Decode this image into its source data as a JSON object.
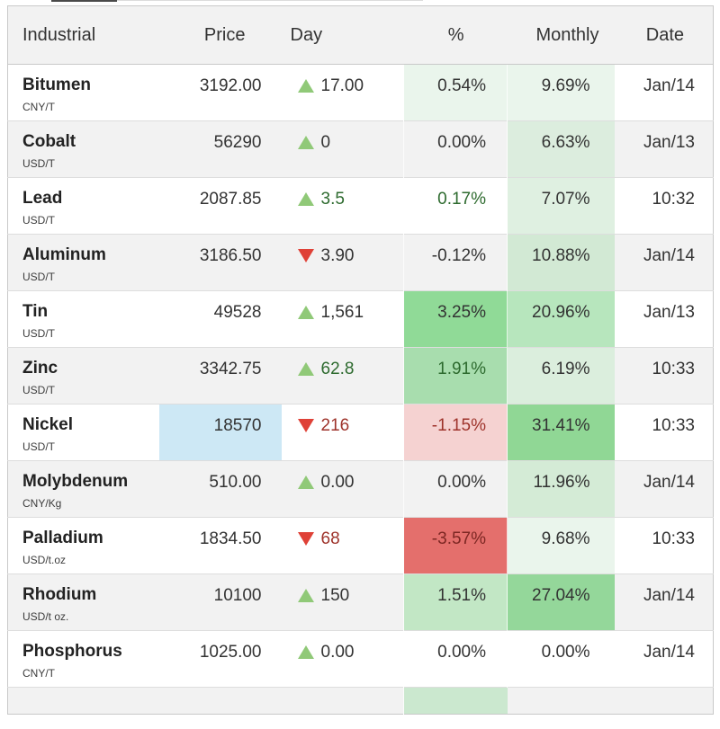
{
  "colors": {
    "triangle-green": "#90c978",
    "triangle-red": "#df4137",
    "text-dark": "#333333",
    "text-green": "#2d6a2e",
    "text-darkred": "#9e332b",
    "text-maroon": "#7c2723",
    "price-flash-blue": "#cde8f5",
    "header-bg": "#f2f2f2",
    "stripe-bg": "#f2f2f2"
  },
  "table": {
    "columns": [
      {
        "label": "Industrial"
      },
      {
        "label": "Price"
      },
      {
        "label": "Day"
      },
      {
        "label": "%"
      },
      {
        "label": "Monthly"
      },
      {
        "label": "Date"
      }
    ],
    "rows": [
      {
        "name": "Bitumen",
        "unit": "CNY/T",
        "price": "3192.00",
        "price_bg": null,
        "day": {
          "dir": "up",
          "value": "17.00",
          "color": "dark"
        },
        "pct": {
          "value": "0.54%",
          "bg": "#eaf5ec",
          "color": "dark"
        },
        "monthly": {
          "value": "9.69%",
          "bg": "#eaf5ec",
          "color": "dark"
        },
        "date": "Jan/14"
      },
      {
        "name": "Cobalt",
        "unit": "USD/T",
        "price": "56290",
        "price_bg": null,
        "day": {
          "dir": "up",
          "value": "0",
          "color": "dark"
        },
        "pct": {
          "value": "0.00%",
          "bg": null,
          "color": "dark"
        },
        "monthly": {
          "value": "6.63%",
          "bg": "#dcedde",
          "color": "dark"
        },
        "date": "Jan/13"
      },
      {
        "name": "Lead",
        "unit": "USD/T",
        "price": "2087.85",
        "price_bg": null,
        "day": {
          "dir": "up",
          "value": "3.5",
          "color": "green"
        },
        "pct": {
          "value": "0.17%",
          "bg": null,
          "color": "green"
        },
        "monthly": {
          "value": "7.07%",
          "bg": "#dff0e1",
          "color": "dark"
        },
        "date": "10:32"
      },
      {
        "name": "Aluminum",
        "unit": "USD/T",
        "price": "3186.50",
        "price_bg": null,
        "day": {
          "dir": "down",
          "value": "3.90",
          "color": "dark"
        },
        "pct": {
          "value": "-0.12%",
          "bg": null,
          "color": "dark"
        },
        "monthly": {
          "value": "10.88%",
          "bg": "#d2e9d4",
          "color": "dark"
        },
        "date": "Jan/14"
      },
      {
        "name": "Tin",
        "unit": "USD/T",
        "price": "49528",
        "price_bg": null,
        "day": {
          "dir": "up",
          "value": "1,561",
          "color": "dark"
        },
        "pct": {
          "value": "3.25%",
          "bg": "#90da97",
          "color": "dark"
        },
        "monthly": {
          "value": "20.96%",
          "bg": "#b7e6bd",
          "color": "dark"
        },
        "date": "Jan/13"
      },
      {
        "name": "Zinc",
        "unit": "USD/T",
        "price": "3342.75",
        "price_bg": null,
        "day": {
          "dir": "up",
          "value": "62.8",
          "color": "green"
        },
        "pct": {
          "value": "1.91%",
          "bg": "#a8ddae",
          "color": "green"
        },
        "monthly": {
          "value": "6.19%",
          "bg": "#dbeedd",
          "color": "dark"
        },
        "date": "10:33"
      },
      {
        "name": "Nickel",
        "unit": "USD/T",
        "price": "18570",
        "price_bg": "#cde8f5",
        "day": {
          "dir": "down",
          "value": "216",
          "color": "darkred"
        },
        "pct": {
          "value": "-1.15%",
          "bg": "#f5d2d1",
          "color": "darkred"
        },
        "monthly": {
          "value": "31.41%",
          "bg": "#90d795",
          "color": "dark"
        },
        "date": "10:33"
      },
      {
        "name": "Molybdenum",
        "unit": "CNY/Kg",
        "price": "510.00",
        "price_bg": null,
        "day": {
          "dir": "up",
          "value": "0.00",
          "color": "dark"
        },
        "pct": {
          "value": "0.00%",
          "bg": null,
          "color": "dark"
        },
        "monthly": {
          "value": "11.96%",
          "bg": "#d4ebd6",
          "color": "dark"
        },
        "date": "Jan/14"
      },
      {
        "name": "Palladium",
        "unit": "USD/t.oz",
        "price": "1834.50",
        "price_bg": null,
        "day": {
          "dir": "down",
          "value": "68",
          "color": "darkred"
        },
        "pct": {
          "value": "-3.57%",
          "bg": "#e46f6c",
          "color": "maroon"
        },
        "monthly": {
          "value": "9.68%",
          "bg": "#eaf5ec",
          "color": "dark"
        },
        "date": "10:33"
      },
      {
        "name": "Rhodium",
        "unit": "USD/t oz.",
        "price": "10100",
        "price_bg": null,
        "day": {
          "dir": "up",
          "value": "150",
          "color": "dark"
        },
        "pct": {
          "value": "1.51%",
          "bg": "#c2e7c5",
          "color": "dark"
        },
        "monthly": {
          "value": "27.04%",
          "bg": "#94d79a",
          "color": "dark"
        },
        "date": "Jan/14"
      },
      {
        "name": "Phosphorus",
        "unit": "CNY/T",
        "price": "1025.00",
        "price_bg": null,
        "day": {
          "dir": "up",
          "value": "0.00",
          "color": "dark"
        },
        "pct": {
          "value": "0.00%",
          "bg": null,
          "color": "dark"
        },
        "monthly": {
          "value": "0.00%",
          "bg": null,
          "color": "dark"
        },
        "date": "Jan/14"
      }
    ],
    "partial_row": {
      "pct_bg": "#cbe8cf"
    }
  }
}
